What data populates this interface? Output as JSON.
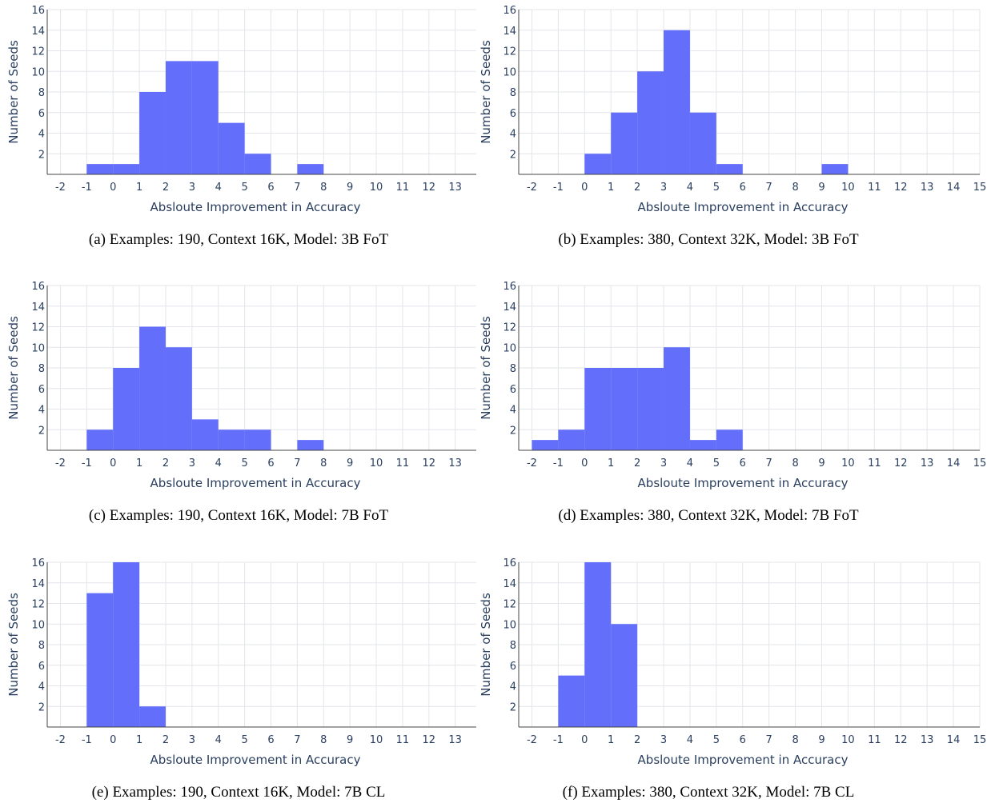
{
  "colors": {
    "bar": "#636efa",
    "grid": "#e3e6ea",
    "axis_text": "#2a3f5f"
  },
  "chart_data": [
    {
      "type": "bar",
      "caption": "(a) Examples: 190, Context 16K, Model: 3B FoT",
      "xlabel": "Absloute Improvement in Accuracy",
      "ylabel": "Number of Seeds",
      "xlim": [
        -2.5,
        13.8
      ],
      "ylim": [
        0,
        16
      ],
      "xticks": [
        -2,
        -1,
        0,
        1,
        2,
        3,
        4,
        5,
        6,
        7,
        8,
        9,
        10,
        11,
        12,
        13
      ],
      "yticks": [
        2,
        4,
        6,
        8,
        10,
        12,
        14,
        16
      ],
      "bins": [
        [
          -1,
          0,
          1
        ],
        [
          0,
          1,
          1
        ],
        [
          1,
          2,
          8
        ],
        [
          2,
          3,
          11
        ],
        [
          3,
          4,
          11
        ],
        [
          4,
          5,
          5
        ],
        [
          5,
          6,
          2
        ],
        [
          7,
          8,
          1
        ]
      ]
    },
    {
      "type": "bar",
      "caption": "(b) Examples: 380, Context 32K, Model: 3B FoT",
      "xlabel": "Absloute Improvement in Accuracy",
      "ylabel": "Number of Seeds",
      "xlim": [
        -2.5,
        15.0
      ],
      "ylim": [
        0,
        16
      ],
      "xticks": [
        -2,
        -1,
        0,
        1,
        2,
        3,
        4,
        5,
        6,
        7,
        8,
        9,
        10,
        11,
        12,
        13,
        14,
        15
      ],
      "yticks": [
        2,
        4,
        6,
        8,
        10,
        12,
        14,
        16
      ],
      "bins": [
        [
          0,
          1,
          2
        ],
        [
          1,
          2,
          6
        ],
        [
          2,
          3,
          10
        ],
        [
          3,
          4,
          14
        ],
        [
          4,
          5,
          6
        ],
        [
          5,
          6,
          1
        ],
        [
          9,
          10,
          1
        ]
      ]
    },
    {
      "type": "bar",
      "caption": "(c) Examples: 190, Context 16K, Model: 7B FoT",
      "xlabel": "Absloute Improvement in Accuracy",
      "ylabel": "Number of Seeds",
      "xlim": [
        -2.5,
        13.8
      ],
      "ylim": [
        0,
        16
      ],
      "xticks": [
        -2,
        -1,
        0,
        1,
        2,
        3,
        4,
        5,
        6,
        7,
        8,
        9,
        10,
        11,
        12,
        13
      ],
      "yticks": [
        2,
        4,
        6,
        8,
        10,
        12,
        14,
        16
      ],
      "bins": [
        [
          -1,
          0,
          2
        ],
        [
          0,
          1,
          8
        ],
        [
          1,
          2,
          12
        ],
        [
          2,
          3,
          10
        ],
        [
          3,
          4,
          3
        ],
        [
          4,
          5,
          2
        ],
        [
          5,
          6,
          2
        ],
        [
          7,
          8,
          1
        ]
      ]
    },
    {
      "type": "bar",
      "caption": "(d) Examples: 380, Context 32K, Model: 7B FoT",
      "xlabel": "Absloute Improvement in Accuracy",
      "ylabel": "Number of Seeds",
      "xlim": [
        -2.5,
        15.0
      ],
      "ylim": [
        0,
        16
      ],
      "xticks": [
        -2,
        -1,
        0,
        1,
        2,
        3,
        4,
        5,
        6,
        7,
        8,
        9,
        10,
        11,
        12,
        13,
        14,
        15
      ],
      "yticks": [
        2,
        4,
        6,
        8,
        10,
        12,
        14,
        16
      ],
      "bins": [
        [
          -2,
          -1,
          1
        ],
        [
          -1,
          0,
          2
        ],
        [
          0,
          1,
          8
        ],
        [
          1,
          2,
          8
        ],
        [
          2,
          3,
          8
        ],
        [
          3,
          4,
          10
        ],
        [
          4,
          5,
          1
        ],
        [
          5,
          6,
          2
        ]
      ]
    },
    {
      "type": "bar",
      "caption": "(e) Examples: 190, Context 16K, Model: 7B CL",
      "xlabel": "Absloute Improvement in Accuracy",
      "ylabel": "Number of Seeds",
      "xlim": [
        -2.5,
        13.8
      ],
      "ylim": [
        0,
        16
      ],
      "xticks": [
        -2,
        -1,
        0,
        1,
        2,
        3,
        4,
        5,
        6,
        7,
        8,
        9,
        10,
        11,
        12,
        13
      ],
      "yticks": [
        2,
        4,
        6,
        8,
        10,
        12,
        14,
        16
      ],
      "bins": [
        [
          -1,
          0,
          13
        ],
        [
          0,
          1,
          16
        ],
        [
          1,
          2,
          2
        ]
      ]
    },
    {
      "type": "bar",
      "caption": "(f) Examples: 380, Context 32K, Model: 7B CL",
      "xlabel": "Absloute Improvement in Accuracy",
      "ylabel": "Number of Seeds",
      "xlim": [
        -2.5,
        15.0
      ],
      "ylim": [
        0,
        16
      ],
      "xticks": [
        -2,
        -1,
        0,
        1,
        2,
        3,
        4,
        5,
        6,
        7,
        8,
        9,
        10,
        11,
        12,
        13,
        14,
        15
      ],
      "yticks": [
        2,
        4,
        6,
        8,
        10,
        12,
        14,
        16
      ],
      "bins": [
        [
          -1,
          0,
          5
        ],
        [
          0,
          1,
          16
        ],
        [
          1,
          2,
          10
        ]
      ]
    }
  ]
}
